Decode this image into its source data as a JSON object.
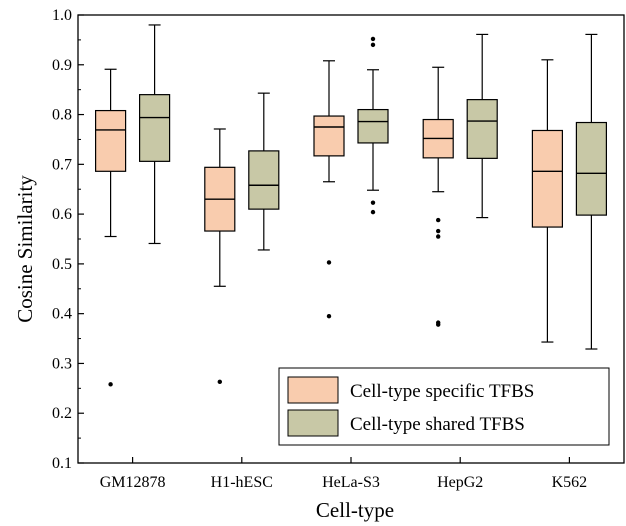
{
  "chart_data": {
    "type": "boxplot",
    "xlabel": "Cell-type",
    "ylabel": "Cosine Similarity",
    "ylim": [
      0.1,
      1.0
    ],
    "yticks": [
      "0.1",
      "0.2",
      "0.3",
      "0.4",
      "0.5",
      "0.6",
      "0.7",
      "0.8",
      "0.9",
      "1.0"
    ],
    "categories": [
      "GM12878",
      "H1-hESC",
      "HeLa-S3",
      "HepG2",
      "K562"
    ],
    "legend_position": "bottom-right",
    "series": [
      {
        "name": "Cell-type specific TFBS",
        "color": "#F9CCAE",
        "boxes": [
          {
            "whisker_low": 0.555,
            "q1": 0.686,
            "median": 0.769,
            "q3": 0.808,
            "whisker_high": 0.891,
            "outliers": [
              0.258
            ]
          },
          {
            "whisker_low": 0.455,
            "q1": 0.566,
            "median": 0.63,
            "q3": 0.694,
            "whisker_high": 0.771,
            "outliers": [
              0.263
            ]
          },
          {
            "whisker_low": 0.665,
            "q1": 0.717,
            "median": 0.775,
            "q3": 0.797,
            "whisker_high": 0.908,
            "outliers": [
              0.503,
              0.395
            ]
          },
          {
            "whisker_low": 0.645,
            "q1": 0.713,
            "median": 0.752,
            "q3": 0.79,
            "whisker_high": 0.895,
            "outliers": [
              0.588,
              0.566,
              0.555,
              0.382,
              0.378
            ]
          },
          {
            "whisker_low": 0.343,
            "q1": 0.574,
            "median": 0.686,
            "q3": 0.768,
            "whisker_high": 0.91,
            "outliers": []
          }
        ]
      },
      {
        "name": "Cell-type shared TFBS",
        "color": "#C8C8A6",
        "boxes": [
          {
            "whisker_low": 0.541,
            "q1": 0.706,
            "median": 0.794,
            "q3": 0.84,
            "whisker_high": 0.98,
            "outliers": []
          },
          {
            "whisker_low": 0.528,
            "q1": 0.61,
            "median": 0.658,
            "q3": 0.727,
            "whisker_high": 0.843,
            "outliers": []
          },
          {
            "whisker_low": 0.648,
            "q1": 0.743,
            "median": 0.786,
            "q3": 0.81,
            "whisker_high": 0.89,
            "outliers": [
              0.952,
              0.94,
              0.623,
              0.604
            ]
          },
          {
            "whisker_low": 0.593,
            "q1": 0.712,
            "median": 0.787,
            "q3": 0.83,
            "whisker_high": 0.961,
            "outliers": []
          },
          {
            "whisker_low": 0.329,
            "q1": 0.598,
            "median": 0.682,
            "q3": 0.784,
            "whisker_high": 0.961,
            "outliers": []
          }
        ]
      }
    ]
  }
}
